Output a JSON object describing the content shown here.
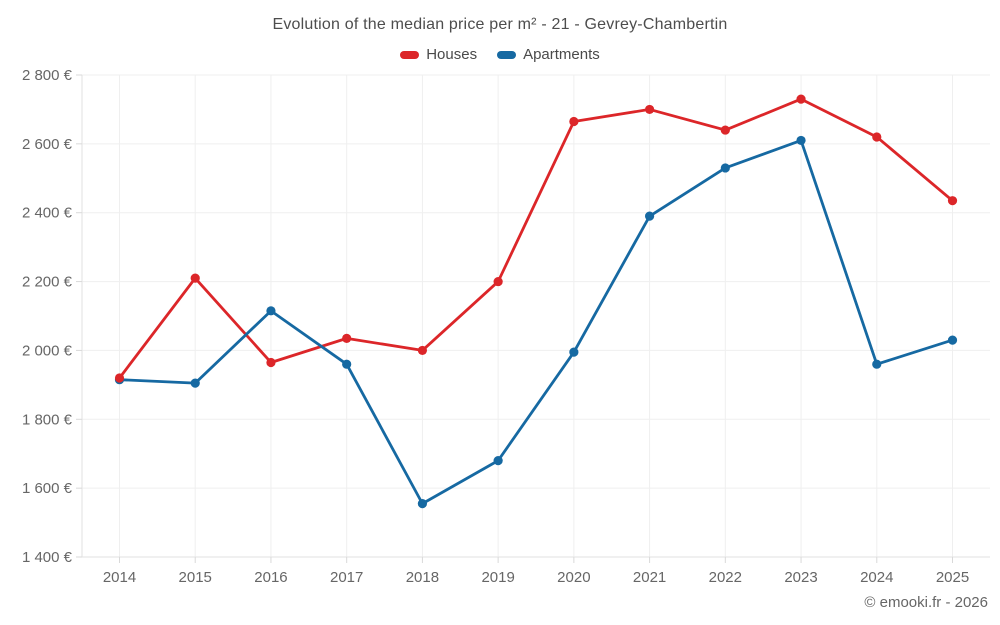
{
  "title": "Evolution of the median price per m² - 21 - Gevrey-Chambertin",
  "legend": {
    "items": [
      {
        "label": "Houses",
        "color": "#dc2629",
        "swatch_icon": "series-swatch"
      },
      {
        "label": "Apartments",
        "color": "#1669a2",
        "swatch_icon": "series-swatch"
      }
    ]
  },
  "footer": "© emooki.fr - 2026",
  "chart_data": {
    "type": "line",
    "title": "Evolution of the median price per m² - 21 - Gevrey-Chambertin",
    "x": [
      "2014",
      "2015",
      "2016",
      "2017",
      "2018",
      "2019",
      "2020",
      "2021",
      "2022",
      "2023",
      "2024",
      "2025"
    ],
    "series": [
      {
        "name": "Houses",
        "color": "#dc2629",
        "values": [
          1920,
          2210,
          1965,
          2035,
          2000,
          2200,
          2665,
          2700,
          2640,
          2730,
          2620,
          2435
        ]
      },
      {
        "name": "Apartments",
        "color": "#1669a2",
        "values": [
          1915,
          1905,
          2115,
          1960,
          1555,
          1680,
          1995,
          2390,
          2530,
          2610,
          1960,
          2030
        ]
      }
    ],
    "ylim": [
      1400,
      2800
    ],
    "yticks": {
      "values": [
        1400,
        1600,
        1800,
        2000,
        2200,
        2400,
        2600,
        2800
      ],
      "labels": [
        "1 400 €",
        "1 600 €",
        "1 800 €",
        "2 000 €",
        "2 200 €",
        "2 400 €",
        "2 600 €",
        "2 800 €"
      ]
    },
    "unit": "€",
    "grid": true,
    "legend_position": "top",
    "marker": "circle"
  },
  "colors": {
    "houses_series": "#dc2629",
    "apartments_series": "#1669a2",
    "gridline": "#efefef",
    "axis_line": "#e2e2e2",
    "tick": "#d9d9d9",
    "title_text": "#4d4d4d",
    "axis_text": "#666666",
    "footer_text": "#666666",
    "background": "#ffffff"
  }
}
